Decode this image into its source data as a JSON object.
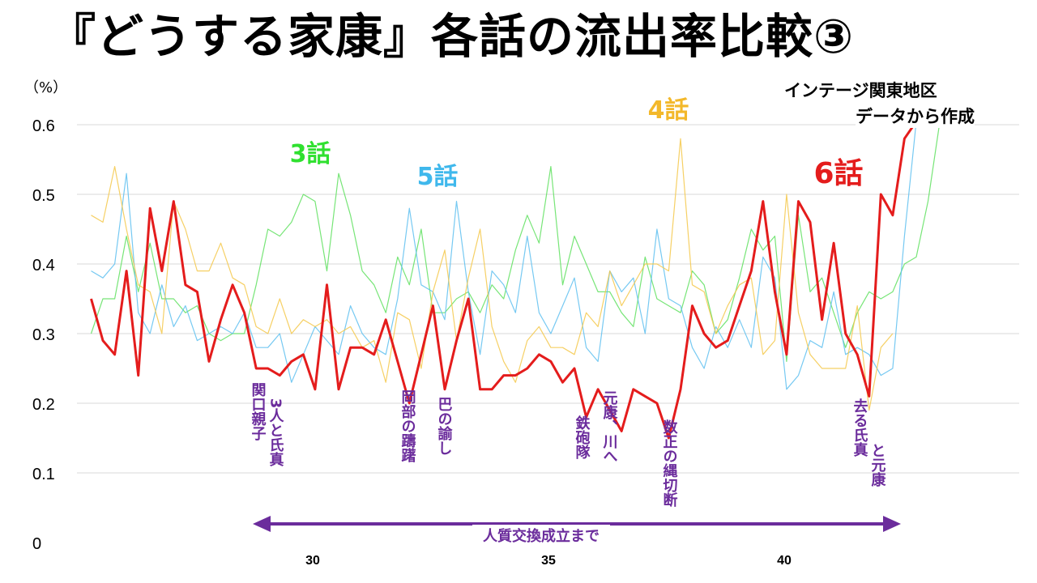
{
  "title": "『どうする家康』各話の流出率比較③",
  "source_line1": "インテージ関東地区",
  "source_line2": "データから作成",
  "chart_data": {
    "type": "line",
    "unit": "（%）",
    "ylim": [
      0,
      0.6
    ],
    "y_ticks": [
      "0",
      "0.1",
      "0.2",
      "0.3",
      "0.4",
      "0.5",
      "0.6"
    ],
    "x_ticks": [
      "30",
      "35",
      "40"
    ],
    "xlim": [
      25,
      44.6
    ],
    "grid": true,
    "series": [
      {
        "name": "3話",
        "color": "#5fe05f",
        "x": [
          25.3,
          25.55,
          25.8,
          26.05,
          26.3,
          26.55,
          26.8,
          27.05,
          27.3,
          27.55,
          27.8,
          28.05,
          28.3,
          28.55,
          28.8,
          29.05,
          29.3,
          29.55,
          29.8,
          30.05,
          30.3,
          30.55,
          30.8,
          31.05,
          31.3,
          31.55,
          31.8,
          32.05,
          32.3,
          32.55,
          32.8,
          33.05,
          33.3,
          33.55,
          33.8,
          34.05,
          34.3,
          34.55,
          34.8,
          35.05,
          35.3,
          35.55,
          35.8,
          36.05,
          36.3,
          36.55,
          36.8,
          37.05,
          37.3,
          37.55,
          37.8,
          38.05,
          38.3,
          38.55,
          38.8,
          39.05,
          39.3,
          39.55,
          39.8,
          40.05,
          40.3,
          40.55,
          40.8,
          41.05,
          41.3,
          41.55,
          41.8,
          42.05,
          42.3,
          42.55,
          42.8,
          43.05,
          43.3
        ],
        "y": [
          0.3,
          0.35,
          0.35,
          0.44,
          0.36,
          0.43,
          0.35,
          0.35,
          0.33,
          0.34,
          0.3,
          0.29,
          0.3,
          0.3,
          0.37,
          0.45,
          0.44,
          0.46,
          0.5,
          0.49,
          0.39,
          0.53,
          0.47,
          0.39,
          0.37,
          0.33,
          0.41,
          0.37,
          0.45,
          0.33,
          0.33,
          0.35,
          0.36,
          0.33,
          0.37,
          0.35,
          0.42,
          0.47,
          0.43,
          0.54,
          0.37,
          0.44,
          0.4,
          0.36,
          0.36,
          0.33,
          0.31,
          0.41,
          0.35,
          0.34,
          0.33,
          0.39,
          0.37,
          0.3,
          0.32,
          0.38,
          0.45,
          0.42,
          0.44,
          0.26,
          0.47,
          0.36,
          0.38,
          0.33,
          0.28,
          0.33,
          0.36,
          0.35,
          0.36,
          0.4,
          0.41,
          0.49,
          0.62
        ]
      },
      {
        "name": "5話",
        "color": "#5ec0f0",
        "x": [
          25.3,
          25.55,
          25.8,
          26.05,
          26.3,
          26.55,
          26.8,
          27.05,
          27.3,
          27.55,
          27.8,
          28.05,
          28.3,
          28.55,
          28.8,
          29.05,
          29.3,
          29.55,
          29.8,
          30.05,
          30.3,
          30.55,
          30.8,
          31.05,
          31.3,
          31.55,
          31.8,
          32.05,
          32.3,
          32.55,
          32.8,
          33.05,
          33.3,
          33.55,
          33.8,
          34.05,
          34.3,
          34.55,
          34.8,
          35.05,
          35.3,
          35.55,
          35.8,
          36.05,
          36.3,
          36.55,
          36.8,
          37.05,
          37.3,
          37.55,
          37.8,
          38.05,
          38.3,
          38.55,
          38.8,
          39.05,
          39.3,
          39.55,
          39.8,
          40.05,
          40.3,
          40.55,
          40.8,
          41.05,
          41.3,
          41.55,
          41.8,
          42.05,
          42.3,
          42.55,
          42.8,
          43.05
        ],
        "y": [
          0.39,
          0.38,
          0.4,
          0.53,
          0.33,
          0.3,
          0.37,
          0.31,
          0.34,
          0.29,
          0.3,
          0.31,
          0.3,
          0.33,
          0.28,
          0.28,
          0.3,
          0.23,
          0.27,
          0.31,
          0.29,
          0.27,
          0.34,
          0.3,
          0.28,
          0.27,
          0.35,
          0.48,
          0.37,
          0.36,
          0.32,
          0.49,
          0.36,
          0.27,
          0.39,
          0.37,
          0.33,
          0.44,
          0.33,
          0.3,
          0.34,
          0.38,
          0.28,
          0.26,
          0.39,
          0.36,
          0.38,
          0.3,
          0.45,
          0.35,
          0.34,
          0.28,
          0.25,
          0.31,
          0.28,
          0.32,
          0.28,
          0.41,
          0.38,
          0.22,
          0.24,
          0.29,
          0.28,
          0.36,
          0.27,
          0.28,
          0.27,
          0.24,
          0.25,
          0.44,
          0.62,
          0.62
        ]
      },
      {
        "name": "4話",
        "color": "#f5c84a",
        "x": [
          25.3,
          25.55,
          25.8,
          26.05,
          26.3,
          26.55,
          26.8,
          27.05,
          27.3,
          27.55,
          27.8,
          28.05,
          28.3,
          28.55,
          28.8,
          29.05,
          29.3,
          29.55,
          29.8,
          30.05,
          30.3,
          30.55,
          30.8,
          31.05,
          31.3,
          31.55,
          31.8,
          32.05,
          32.3,
          32.55,
          32.8,
          33.05,
          33.3,
          33.55,
          33.8,
          34.05,
          34.3,
          34.55,
          34.8,
          35.05,
          35.3,
          35.55,
          35.8,
          36.05,
          36.3,
          36.55,
          36.8,
          37.05,
          37.3,
          37.55,
          37.8,
          38.05,
          38.3,
          38.55,
          38.8,
          39.05,
          39.3,
          39.55,
          39.8,
          40.05,
          40.3,
          40.55,
          40.8,
          41.05,
          41.3,
          41.55,
          41.8,
          42.05,
          42.3
        ],
        "y": [
          0.47,
          0.46,
          0.54,
          0.45,
          0.37,
          0.36,
          0.3,
          0.49,
          0.45,
          0.39,
          0.39,
          0.43,
          0.38,
          0.37,
          0.31,
          0.3,
          0.35,
          0.3,
          0.32,
          0.31,
          0.32,
          0.3,
          0.31,
          0.28,
          0.29,
          0.23,
          0.33,
          0.32,
          0.25,
          0.36,
          0.42,
          0.29,
          0.38,
          0.45,
          0.31,
          0.26,
          0.23,
          0.29,
          0.31,
          0.28,
          0.28,
          0.27,
          0.33,
          0.31,
          0.39,
          0.34,
          0.37,
          0.4,
          0.4,
          0.39,
          0.58,
          0.37,
          0.36,
          0.3,
          0.34,
          0.37,
          0.38,
          0.27,
          0.29,
          0.5,
          0.33,
          0.27,
          0.25,
          0.25,
          0.25,
          0.34,
          0.19,
          0.28,
          0.3
        ]
      },
      {
        "name": "6話",
        "color": "#e41c1c",
        "x": [
          25.3,
          25.55,
          25.8,
          26.05,
          26.3,
          26.55,
          26.8,
          27.05,
          27.3,
          27.55,
          27.8,
          28.05,
          28.3,
          28.55,
          28.8,
          29.05,
          29.3,
          29.55,
          29.8,
          30.05,
          30.3,
          30.55,
          30.8,
          31.05,
          31.3,
          31.55,
          31.8,
          32.05,
          32.3,
          32.55,
          32.8,
          33.05,
          33.3,
          33.55,
          33.8,
          34.05,
          34.3,
          34.55,
          34.8,
          35.05,
          35.3,
          35.55,
          35.8,
          36.05,
          36.3,
          36.55,
          36.8,
          37.05,
          37.3,
          37.55,
          37.8,
          38.05,
          38.3,
          38.55,
          38.8,
          39.05,
          39.3,
          39.55,
          39.8,
          40.05,
          40.3,
          40.55,
          40.8,
          41.05,
          41.3,
          41.55,
          41.8,
          42.05,
          42.3,
          42.55,
          42.8
        ],
        "y": [
          0.35,
          0.29,
          0.27,
          0.39,
          0.24,
          0.48,
          0.39,
          0.49,
          0.37,
          0.36,
          0.26,
          0.32,
          0.37,
          0.33,
          0.25,
          0.25,
          0.24,
          0.26,
          0.27,
          0.22,
          0.37,
          0.22,
          0.28,
          0.28,
          0.27,
          0.32,
          0.26,
          0.2,
          0.27,
          0.34,
          0.22,
          0.29,
          0.35,
          0.22,
          0.22,
          0.24,
          0.24,
          0.25,
          0.27,
          0.26,
          0.23,
          0.25,
          0.18,
          0.22,
          0.19,
          0.16,
          0.22,
          0.21,
          0.2,
          0.15,
          0.22,
          0.34,
          0.3,
          0.28,
          0.29,
          0.34,
          0.39,
          0.49,
          0.36,
          0.27,
          0.49,
          0.46,
          0.32,
          0.43,
          0.3,
          0.27,
          0.21,
          0.5,
          0.47,
          0.58,
          0.62
        ]
      }
    ],
    "series_labels": [
      {
        "text": "3話",
        "color": "#2fe02f"
      },
      {
        "text": "5話",
        "color": "#3fb8ec"
      },
      {
        "text": "4話",
        "color": "#f3b82a"
      },
      {
        "text": "6話",
        "color": "#e41c1c"
      }
    ],
    "annotations": [
      {
        "text": "関口親子",
        "color": "#6b2c9c"
      },
      {
        "text": "3人と氏真",
        "color": "#6b2c9c"
      },
      {
        "text": "岡部の躊躇",
        "color": "#6b2c9c"
      },
      {
        "text": "巴の諭し",
        "color": "#6b2c9c"
      },
      {
        "text": "鉄砲隊",
        "color": "#6b2c9c"
      },
      {
        "text": "元康、川へ",
        "color": "#6b2c9c"
      },
      {
        "text": "数正の縄切断",
        "color": "#6b2c9c"
      },
      {
        "text": "去る氏真",
        "color": "#6b2c9c"
      },
      {
        "text": "と元康",
        "color": "#6b2c9c"
      }
    ],
    "span_arrow": {
      "text": "人質交換成立まで",
      "color": "#6b2c9c"
    }
  }
}
